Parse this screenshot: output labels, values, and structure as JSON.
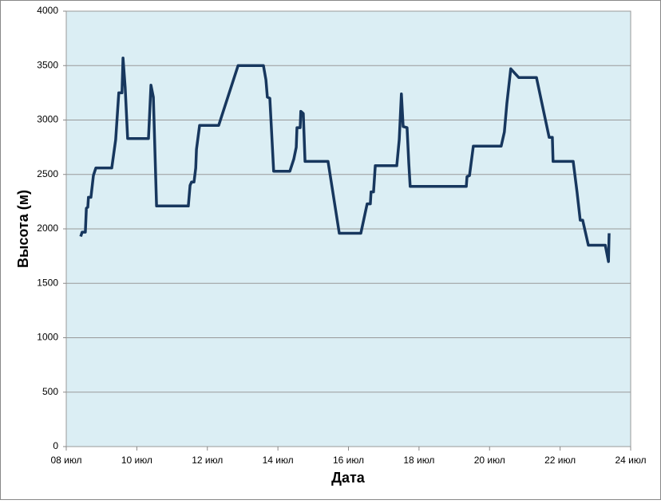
{
  "chart_data": {
    "type": "line",
    "x_label": "Дата",
    "y_label": "Высота (м)",
    "xlim": [
      8,
      24
    ],
    "xticks": [
      {
        "value": 8,
        "label": "08 июл"
      },
      {
        "value": 10,
        "label": "10 июл"
      },
      {
        "value": 12,
        "label": "12 июл"
      },
      {
        "value": 14,
        "label": "14 июл"
      },
      {
        "value": 16,
        "label": "16 июл"
      },
      {
        "value": 18,
        "label": "18 июл"
      },
      {
        "value": 20,
        "label": "20 июл"
      },
      {
        "value": 22,
        "label": "22 июл"
      },
      {
        "value": 24,
        "label": "24 июл"
      }
    ],
    "ylim": [
      0,
      4000
    ],
    "yticks": [
      0,
      500,
      1000,
      1500,
      2000,
      2500,
      3000,
      3500,
      4000
    ],
    "grid": true,
    "x": [
      8.41,
      8.45,
      8.54,
      8.57,
      8.61,
      8.63,
      8.7,
      8.77,
      8.84,
      9.29,
      9.4,
      9.49,
      9.58,
      9.61,
      9.67,
      9.74,
      10.33,
      10.4,
      10.47,
      10.56,
      11.46,
      11.51,
      11.55,
      11.62,
      11.67,
      11.69,
      11.78,
      12.32,
      12.87,
      13.59,
      13.66,
      13.7,
      13.77,
      13.88,
      14.34,
      14.45,
      14.52,
      14.54,
      14.63,
      14.65,
      14.72,
      14.77,
      15.42,
      15.74,
      16.35,
      16.53,
      16.62,
      16.64,
      16.71,
      16.76,
      17.37,
      17.44,
      17.5,
      17.55,
      17.66,
      17.71,
      17.75,
      19.34,
      19.36,
      19.43,
      19.54,
      20.33,
      20.42,
      20.49,
      20.6,
      20.83,
      21.33,
      21.69,
      21.78,
      21.8,
      22.37,
      22.48,
      22.57,
      22.64,
      22.8,
      23.28,
      23.37,
      23.39
    ],
    "series": [
      {
        "name": "Высота",
        "color": "#17375e",
        "values": [
          1930,
          1970,
          1970,
          2190,
          2200,
          2290,
          2290,
          2490,
          2560,
          2560,
          2820,
          3250,
          3250,
          3570,
          3300,
          2830,
          2830,
          3320,
          3210,
          2210,
          2210,
          2400,
          2430,
          2430,
          2560,
          2730,
          2950,
          2950,
          3500,
          3500,
          3370,
          3210,
          3200,
          2530,
          2530,
          2640,
          2750,
          2930,
          2930,
          3080,
          3060,
          2620,
          2620,
          1960,
          1960,
          2230,
          2230,
          2340,
          2340,
          2580,
          2580,
          2820,
          3240,
          2940,
          2930,
          2600,
          2390,
          2390,
          2480,
          2490,
          2760,
          2760,
          2890,
          3150,
          3470,
          3390,
          3390,
          2840,
          2840,
          2620,
          2620,
          2340,
          2080,
          2080,
          1850,
          1850,
          1700,
          1960
        ]
      }
    ]
  }
}
